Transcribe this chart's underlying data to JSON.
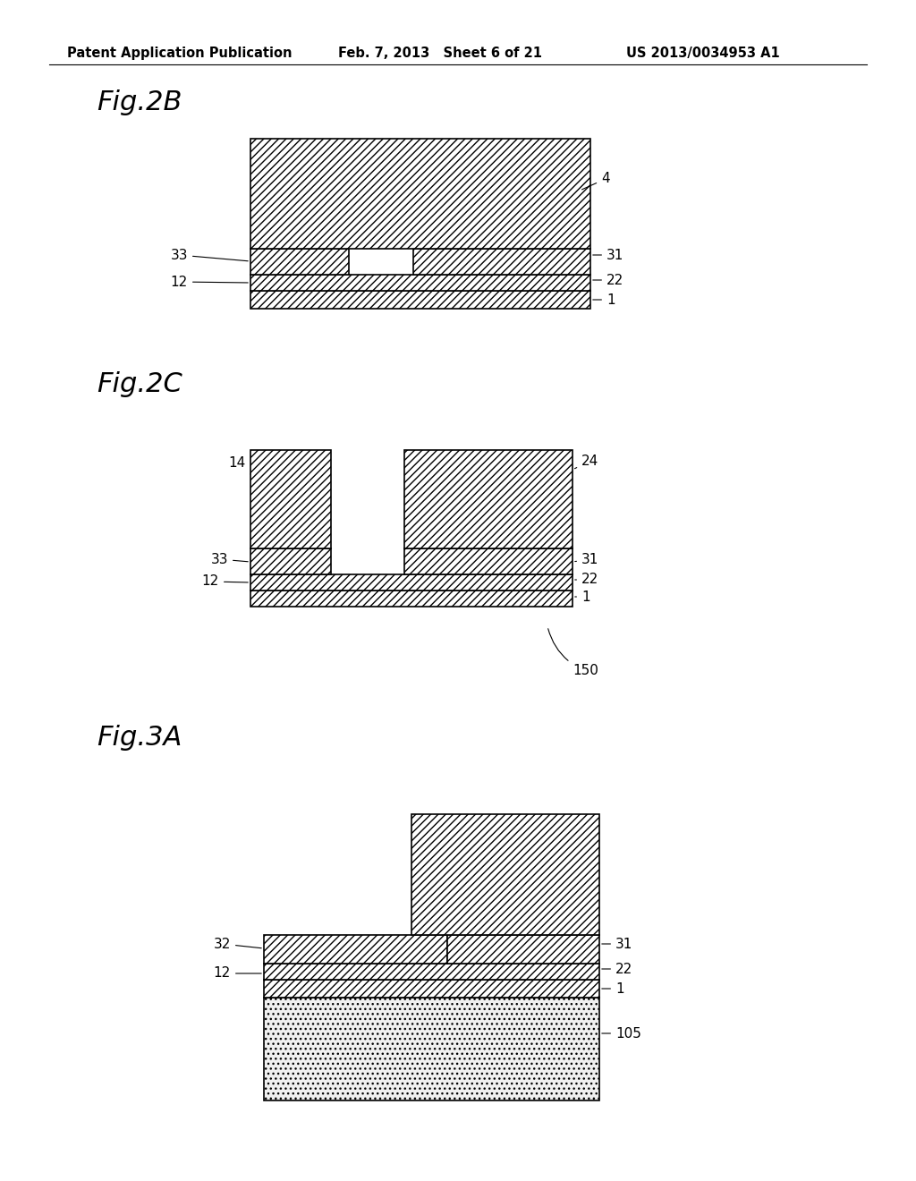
{
  "bg_color": "#ffffff",
  "header_left": "Patent Application Publication",
  "header_center": "Feb. 7, 2013   Sheet 6 of 21",
  "header_right": "US 2013/0034953 A1",
  "fig2b_title": "Fig.2B",
  "fig2c_title": "Fig.2C",
  "fig3a_title": "Fig.3A",
  "line_color": "#000000",
  "hatch_diag": "////",
  "hatch_chevron": "////",
  "hatch_dots": "....",
  "label_fontsize": 11,
  "title_fontsize": 22
}
